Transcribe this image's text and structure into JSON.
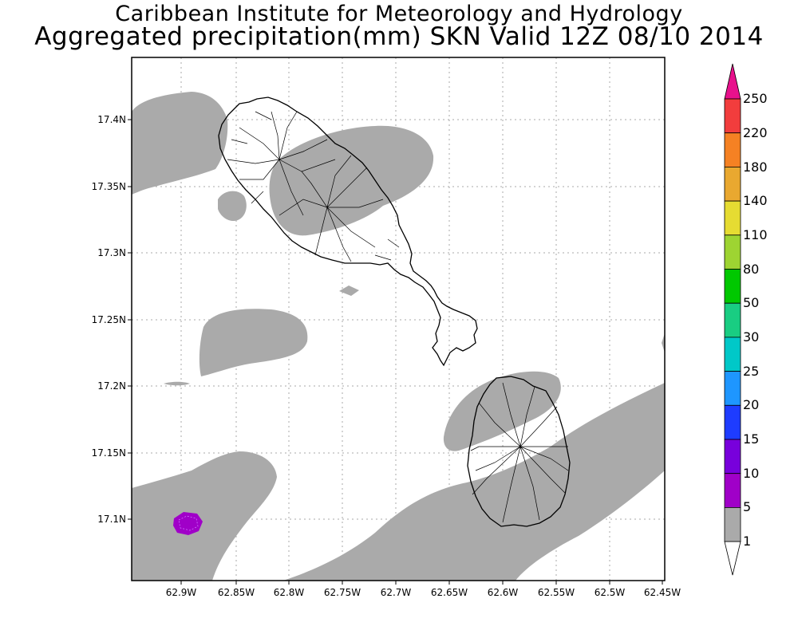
{
  "header": {
    "line1": "Caribbean Institute for Meteorology and Hydrology",
    "line2": "Aggregated precipitation(mm) SKN Valid 12Z 08/10 2014"
  },
  "axes": {
    "lat_ticks": [
      "17.4N",
      "17.35N",
      "17.3N",
      "17.25N",
      "17.2N",
      "17.15N",
      "17.1N"
    ],
    "lon_ticks": [
      "62.9W",
      "62.85W",
      "62.8W",
      "62.75W",
      "62.7W",
      "62.65W",
      "62.6W",
      "62.55W",
      "62.5W",
      "62.45W"
    ]
  },
  "colorbar": {
    "labels": [
      "250",
      "220",
      "180",
      "140",
      "110",
      "80",
      "50",
      "30",
      "25",
      "20",
      "15",
      "10",
      "5",
      "1"
    ],
    "colors": [
      "#e8118c",
      "#f23d3d",
      "#f58123",
      "#e9a830",
      "#e6dc32",
      "#9ed432",
      "#00c800",
      "#19cd82",
      "#00c8c8",
      "#1e96ff",
      "#1e3cff",
      "#7800dc",
      "#a000c8",
      "#aaaaaa",
      "#ffffff"
    ]
  },
  "map": {
    "precip_color": "#aaaaaa",
    "heavy_color": "#a000c8",
    "islands": [
      "St. Kitts",
      "Nevis"
    ]
  }
}
